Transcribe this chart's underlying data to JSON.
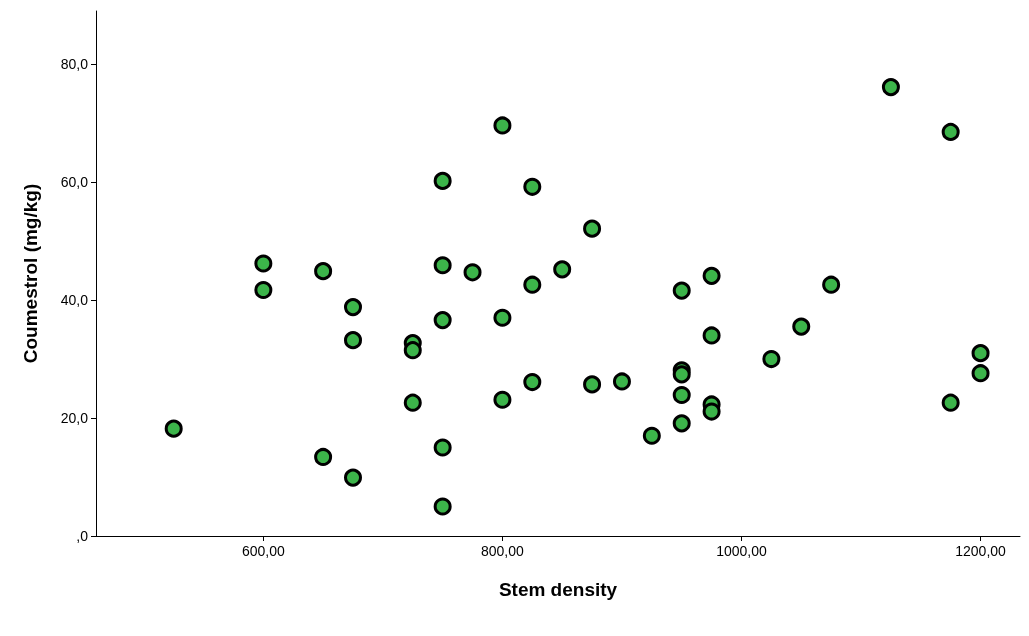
{
  "chart_data": {
    "type": "scatter",
    "xlabel": "Stem density",
    "ylabel": "Coumestrol (mg/kg)",
    "xlim": [
      460,
      1233
    ],
    "ylim": [
      0,
      89
    ],
    "xticks": [
      {
        "value": 600,
        "label": "600,00"
      },
      {
        "value": 800,
        "label": "800,00"
      },
      {
        "value": 1000,
        "label": "1000,00"
      },
      {
        "value": 1200,
        "label": "1200,00"
      }
    ],
    "yticks": [
      {
        "value": 0,
        "label": ",0"
      },
      {
        "value": 20,
        "label": "20,0"
      },
      {
        "value": 40,
        "label": "40,0"
      },
      {
        "value": 60,
        "label": "60,0"
      },
      {
        "value": 80,
        "label": "80,0"
      }
    ],
    "grid": false,
    "marker": "circle",
    "series": [
      {
        "color": "#3cb44a",
        "x": [
          525,
          600,
          600,
          650,
          650,
          675,
          675,
          675,
          725,
          725,
          725,
          750,
          750,
          750,
          750,
          750,
          775,
          800,
          800,
          800,
          825,
          825,
          825,
          850,
          875,
          875,
          900,
          925,
          950,
          950,
          950,
          950,
          950,
          975,
          975,
          975,
          975,
          1025,
          1050,
          1075,
          1125,
          1175,
          1175,
          1200,
          1200
        ],
        "values": [
          18.2,
          46.2,
          41.7,
          44.9,
          13.4,
          38.8,
          33.2,
          9.9,
          32.7,
          31.5,
          22.6,
          60.2,
          45.9,
          36.6,
          15.0,
          5.0,
          44.7,
          69.6,
          37.0,
          23.1,
          59.2,
          42.6,
          26.1,
          45.2,
          52.1,
          25.7,
          26.2,
          17.0,
          41.6,
          28.1,
          27.4,
          23.9,
          19.1,
          44.1,
          34.0,
          22.3,
          21.1,
          30.0,
          35.5,
          42.6,
          76.1,
          68.5,
          22.6,
          31.0,
          27.6
        ]
      }
    ]
  }
}
